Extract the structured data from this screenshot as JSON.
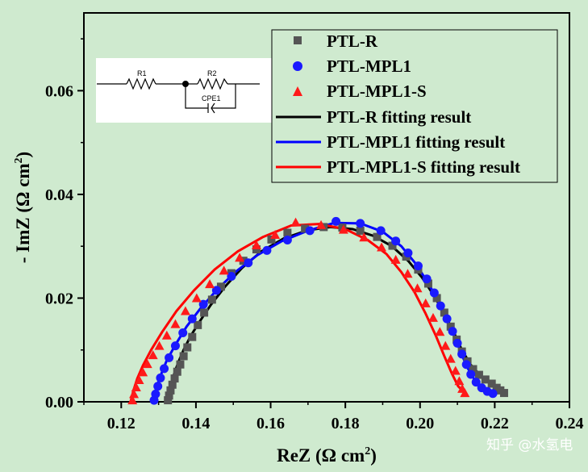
{
  "chart_data": {
    "type": "scatter",
    "xlabel_base": "ReZ (Ω cm",
    "xlabel_sup": "2",
    "xlabel_end": ")",
    "ylabel_base": "- ImZ (Ω cm",
    "ylabel_sup": "2",
    "ylabel_end": ")",
    "xlim": [
      0.11,
      0.24
    ],
    "ylim": [
      0.0,
      0.075
    ],
    "x_ticks": [
      0.12,
      0.14,
      0.16,
      0.18,
      0.2,
      0.22,
      0.24
    ],
    "x_tick_labels": [
      "0.12",
      "0.14",
      "0.16",
      "0.18",
      "0.20",
      "0.22",
      "0.24"
    ],
    "y_ticks": [
      0.0,
      0.02,
      0.04,
      0.06
    ],
    "y_tick_labels": [
      "0.00",
      "0.02",
      "0.04",
      "0.06"
    ],
    "series": [
      {
        "name": "PTL-R",
        "marker": "square",
        "color": "#555555",
        "points": [
          [
            0.1325,
            0.0003
          ],
          [
            0.1328,
            0.0012
          ],
          [
            0.1332,
            0.0022
          ],
          [
            0.1337,
            0.0033
          ],
          [
            0.1343,
            0.0045
          ],
          [
            0.135,
            0.0058
          ],
          [
            0.1358,
            0.0072
          ],
          [
            0.1367,
            0.0088
          ],
          [
            0.1377,
            0.0105
          ],
          [
            0.139,
            0.0125
          ],
          [
            0.1405,
            0.0148
          ],
          [
            0.1422,
            0.0172
          ],
          [
            0.1443,
            0.0197
          ],
          [
            0.1467,
            0.0222
          ],
          [
            0.1495,
            0.0248
          ],
          [
            0.1527,
            0.0272
          ],
          [
            0.1562,
            0.0294
          ],
          [
            0.1602,
            0.0313
          ],
          [
            0.1645,
            0.0326
          ],
          [
            0.1692,
            0.0334
          ],
          [
            0.1742,
            0.0337
          ],
          [
            0.1792,
            0.0336
          ],
          [
            0.184,
            0.033
          ],
          [
            0.1885,
            0.0318
          ],
          [
            0.1926,
            0.0301
          ],
          [
            0.1963,
            0.028
          ],
          [
            0.1995,
            0.0255
          ],
          [
            0.2022,
            0.0228
          ],
          [
            0.2045,
            0.02
          ],
          [
            0.2065,
            0.0172
          ],
          [
            0.2082,
            0.0145
          ],
          [
            0.2098,
            0.012
          ],
          [
            0.2112,
            0.0097
          ],
          [
            0.2127,
            0.0078
          ],
          [
            0.2142,
            0.0063
          ],
          [
            0.2158,
            0.0052
          ],
          [
            0.2175,
            0.0043
          ],
          [
            0.2192,
            0.0035
          ],
          [
            0.2205,
            0.0027
          ],
          [
            0.2215,
            0.0022
          ],
          [
            0.2225,
            0.0017
          ]
        ]
      },
      {
        "name": "PTL-MPL1",
        "marker": "circle",
        "color": "#1a1aff",
        "points": [
          [
            0.1288,
            0.0003
          ],
          [
            0.1292,
            0.0015
          ],
          [
            0.1298,
            0.003
          ],
          [
            0.1305,
            0.0046
          ],
          [
            0.1315,
            0.0064
          ],
          [
            0.1328,
            0.0085
          ],
          [
            0.1345,
            0.0108
          ],
          [
            0.1365,
            0.0133
          ],
          [
            0.139,
            0.016
          ],
          [
            0.142,
            0.0188
          ],
          [
            0.1455,
            0.0215
          ],
          [
            0.1495,
            0.0242
          ],
          [
            0.154,
            0.0268
          ],
          [
            0.159,
            0.0292
          ],
          [
            0.1645,
            0.0312
          ],
          [
            0.1705,
            0.033
          ],
          [
            0.1775,
            0.0348
          ],
          [
            0.184,
            0.0344
          ],
          [
            0.1895,
            0.033
          ],
          [
            0.1935,
            0.031
          ],
          [
            0.1968,
            0.0287
          ],
          [
            0.1995,
            0.0262
          ],
          [
            0.2018,
            0.0237
          ],
          [
            0.2038,
            0.021
          ],
          [
            0.2055,
            0.0185
          ],
          [
            0.2072,
            0.016
          ],
          [
            0.2087,
            0.0136
          ],
          [
            0.21,
            0.0113
          ],
          [
            0.2112,
            0.0092
          ],
          [
            0.2124,
            0.0072
          ],
          [
            0.2136,
            0.0053
          ],
          [
            0.215,
            0.0038
          ],
          [
            0.2165,
            0.0027
          ],
          [
            0.218,
            0.002
          ],
          [
            0.2195,
            0.0016
          ]
        ]
      },
      {
        "name": "PTL-MPL1-S",
        "marker": "triangle",
        "color": "#ff1a1a",
        "points": [
          [
            0.123,
            0.0003
          ],
          [
            0.1234,
            0.0015
          ],
          [
            0.124,
            0.0028
          ],
          [
            0.1248,
            0.0042
          ],
          [
            0.1258,
            0.0057
          ],
          [
            0.127,
            0.0073
          ],
          [
            0.1285,
            0.009
          ],
          [
            0.1302,
            0.0108
          ],
          [
            0.1322,
            0.0128
          ],
          [
            0.1345,
            0.015
          ],
          [
            0.1372,
            0.0175
          ],
          [
            0.1402,
            0.02
          ],
          [
            0.1437,
            0.0227
          ],
          [
            0.1475,
            0.0253
          ],
          [
            0.1517,
            0.0278
          ],
          [
            0.1562,
            0.0302
          ],
          [
            0.1612,
            0.0322
          ],
          [
            0.1667,
            0.0346
          ],
          [
            0.1735,
            0.0341
          ],
          [
            0.1795,
            0.0332
          ],
          [
            0.185,
            0.0317
          ],
          [
            0.1897,
            0.0298
          ],
          [
            0.1935,
            0.0274
          ],
          [
            0.1967,
            0.0247
          ],
          [
            0.1993,
            0.0219
          ],
          [
            0.2015,
            0.019
          ],
          [
            0.2035,
            0.0162
          ],
          [
            0.2053,
            0.0135
          ],
          [
            0.2068,
            0.0108
          ],
          [
            0.2082,
            0.0083
          ],
          [
            0.2095,
            0.006
          ],
          [
            0.2105,
            0.004
          ],
          [
            0.2113,
            0.0025
          ],
          [
            0.212,
            0.0017
          ]
        ]
      }
    ],
    "fits": [
      {
        "name": "PTL-R fitting result",
        "color": "#000000",
        "points": [
          [
            0.1322,
            0.0
          ],
          [
            0.133,
            0.0025
          ],
          [
            0.134,
            0.005
          ],
          [
            0.1352,
            0.0075
          ],
          [
            0.1367,
            0.01
          ],
          [
            0.1386,
            0.0127
          ],
          [
            0.141,
            0.0155
          ],
          [
            0.144,
            0.0187
          ],
          [
            0.1478,
            0.0222
          ],
          [
            0.1523,
            0.0258
          ],
          [
            0.1575,
            0.029
          ],
          [
            0.1635,
            0.0315
          ],
          [
            0.17,
            0.0331
          ],
          [
            0.176,
            0.0337
          ],
          [
            0.182,
            0.0333
          ],
          [
            0.1875,
            0.032
          ],
          [
            0.1925,
            0.03
          ],
          [
            0.1968,
            0.0272
          ],
          [
            0.2005,
            0.024
          ],
          [
            0.2037,
            0.0205
          ],
          [
            0.2065,
            0.017
          ],
          [
            0.209,
            0.0135
          ],
          [
            0.2112,
            0.01
          ],
          [
            0.2135,
            0.0072
          ],
          [
            0.216,
            0.0052
          ],
          [
            0.2185,
            0.0038
          ],
          [
            0.221,
            0.0027
          ],
          [
            0.2225,
            0.002
          ]
        ]
      },
      {
        "name": "PTL-MPL1 fitting result",
        "color": "#0000ff",
        "points": [
          [
            0.1285,
            0.0
          ],
          [
            0.1293,
            0.0025
          ],
          [
            0.1305,
            0.005
          ],
          [
            0.1322,
            0.008
          ],
          [
            0.1345,
            0.011
          ],
          [
            0.1375,
            0.0145
          ],
          [
            0.1412,
            0.018
          ],
          [
            0.1455,
            0.0215
          ],
          [
            0.1505,
            0.025
          ],
          [
            0.1565,
            0.0283
          ],
          [
            0.163,
            0.031
          ],
          [
            0.17,
            0.033
          ],
          [
            0.177,
            0.0345
          ],
          [
            0.184,
            0.0344
          ],
          [
            0.19,
            0.0328
          ],
          [
            0.195,
            0.03
          ],
          [
            0.199,
            0.0265
          ],
          [
            0.2025,
            0.0225
          ],
          [
            0.2055,
            0.0185
          ],
          [
            0.2082,
            0.0143
          ],
          [
            0.2105,
            0.0103
          ],
          [
            0.2125,
            0.0068
          ],
          [
            0.2148,
            0.004
          ],
          [
            0.217,
            0.0025
          ],
          [
            0.2195,
            0.0017
          ]
        ]
      },
      {
        "name": "PTL-MPL1-S fitting result",
        "color": "#ff0000",
        "points": [
          [
            0.1225,
            0.0
          ],
          [
            0.1232,
            0.002
          ],
          [
            0.1243,
            0.0045
          ],
          [
            0.1258,
            0.007
          ],
          [
            0.128,
            0.01
          ],
          [
            0.131,
            0.0135
          ],
          [
            0.1348,
            0.0175
          ],
          [
            0.1395,
            0.0215
          ],
          [
            0.145,
            0.0255
          ],
          [
            0.1512,
            0.029
          ],
          [
            0.158,
            0.0318
          ],
          [
            0.1655,
            0.034
          ],
          [
            0.173,
            0.0343
          ],
          [
            0.18,
            0.0333
          ],
          [
            0.186,
            0.0312
          ],
          [
            0.191,
            0.0285
          ],
          [
            0.195,
            0.025
          ],
          [
            0.1985,
            0.0212
          ],
          [
            0.2015,
            0.017
          ],
          [
            0.2042,
            0.0128
          ],
          [
            0.2065,
            0.0088
          ],
          [
            0.2085,
            0.0055
          ],
          [
            0.2102,
            0.003
          ],
          [
            0.212,
            0.0017
          ]
        ]
      }
    ],
    "legend_position": "top-right",
    "inset": {
      "label_r1": "R1",
      "label_r2": "R2",
      "label_cpe": "CPE1"
    },
    "watermark": "知乎 @水氢电"
  }
}
